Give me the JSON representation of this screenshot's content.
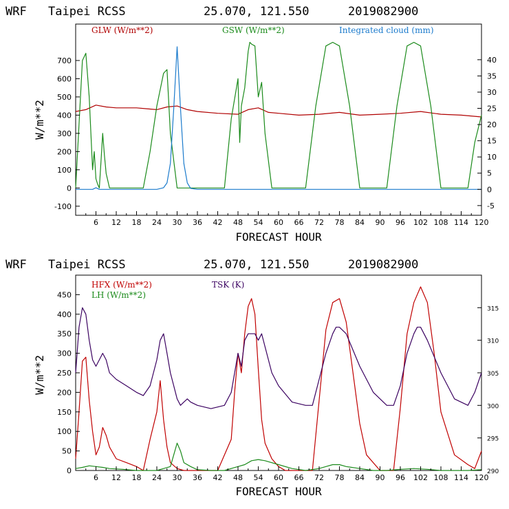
{
  "chart_data": [
    {
      "type": "line",
      "header": {
        "model": "WRF",
        "station": "Taipei RCSS",
        "coords": "25.070, 121.550",
        "init": "2019082900"
      },
      "xlabel": "FORECAST HOUR",
      "ylabel": "W/m**2",
      "xlim": [
        0,
        120
      ],
      "ylim": [
        -150,
        900
      ],
      "y2lim": [
        -8,
        51
      ],
      "xticks": [
        "6",
        "12",
        "18",
        "24",
        "30",
        "36",
        "42",
        "48",
        "54",
        "60",
        "66",
        "72",
        "78",
        "84",
        "90",
        "96",
        "102",
        "108",
        "114",
        "120"
      ],
      "yticks": [
        "-100",
        "0",
        "100",
        "200",
        "300",
        "400",
        "500",
        "600",
        "700"
      ],
      "y2ticks": [
        "-5",
        "0",
        "5",
        "10",
        "15",
        "20",
        "25",
        "30",
        "35",
        "40"
      ],
      "legend": [
        {
          "label": "GLW (W/m**2)",
          "color": "#b00000"
        },
        {
          "label": "GSW (W/m**2)",
          "color": "#1a8a1a"
        },
        {
          "label": "Integrated cloud (mm)",
          "color": "#1a7acc"
        }
      ],
      "series": [
        {
          "name": "GLW (W/m**2)",
          "color": "#b00000",
          "axis": "left",
          "x": [
            0,
            3,
            6,
            9,
            12,
            18,
            21,
            24,
            27,
            30,
            33,
            36,
            42,
            48,
            51,
            54,
            57,
            60,
            66,
            72,
            78,
            84,
            90,
            96,
            102,
            108,
            114,
            120
          ],
          "y": [
            420,
            430,
            455,
            445,
            440,
            440,
            435,
            430,
            445,
            450,
            430,
            420,
            410,
            405,
            430,
            440,
            415,
            410,
            400,
            405,
            415,
            400,
            405,
            410,
            420,
            405,
            400,
            390
          ]
        },
        {
          "name": "GSW (W/m**2)",
          "color": "#1a8a1a",
          "axis": "left",
          "x": [
            0,
            1,
            2,
            3,
            4,
            5,
            5.5,
            6,
            6.5,
            7,
            7.5,
            8,
            8.5,
            9,
            10,
            11,
            12,
            20,
            22,
            24,
            26,
            27,
            28,
            30,
            44,
            46,
            48,
            48.5,
            49,
            50,
            51,
            51.5,
            52,
            53,
            54,
            55,
            56,
            58,
            68,
            71,
            74,
            76,
            78,
            81,
            84,
            92,
            95,
            98,
            100,
            102,
            105,
            108,
            116,
            118,
            120
          ],
          "y": [
            0,
            350,
            700,
            740,
            500,
            100,
            200,
            50,
            20,
            0,
            150,
            300,
            180,
            80,
            0,
            0,
            0,
            0,
            200,
            450,
            630,
            650,
            300,
            0,
            0,
            380,
            600,
            250,
            450,
            550,
            750,
            800,
            790,
            780,
            500,
            580,
            300,
            0,
            0,
            450,
            780,
            800,
            780,
            450,
            0,
            0,
            450,
            780,
            800,
            780,
            450,
            0,
            0,
            250,
            400
          ]
        },
        {
          "name": "Integrated cloud (mm)",
          "color": "#1a7acc",
          "axis": "right",
          "x": [
            0,
            5,
            6,
            7,
            8,
            24,
            26,
            27,
            28,
            29,
            30,
            31,
            32,
            33,
            34,
            36,
            120
          ],
          "y": [
            0,
            0,
            0.5,
            0,
            0,
            0,
            0.5,
            2,
            8,
            25,
            44,
            25,
            8,
            2,
            0.3,
            0,
            0
          ]
        }
      ]
    },
    {
      "type": "line",
      "header": {
        "model": "WRF",
        "station": "Taipei RCSS",
        "coords": "25.070, 121.550",
        "init": "2019082900"
      },
      "xlabel": "FORECAST HOUR",
      "ylabel": "W/m**2",
      "xlim": [
        0,
        120
      ],
      "ylim": [
        0,
        500
      ],
      "y2lim": [
        290,
        320
      ],
      "xticks": [
        "6",
        "12",
        "18",
        "24",
        "30",
        "36",
        "42",
        "48",
        "54",
        "60",
        "66",
        "72",
        "78",
        "84",
        "90",
        "96",
        "102",
        "108",
        "114",
        "120"
      ],
      "yticks": [
        "0",
        "50",
        "100",
        "150",
        "200",
        "250",
        "300",
        "350",
        "400",
        "450"
      ],
      "y2ticks": [
        "290",
        "295",
        "300",
        "305",
        "310",
        "315"
      ],
      "legend": [
        {
          "label": "HFX (W/m**2)",
          "color": "#c00000"
        },
        {
          "label": "LH  (W/m**2)",
          "color": "#1a8a1a"
        },
        {
          "label": "TSK (K)",
          "color": "#3a0060"
        }
      ],
      "series": [
        {
          "name": "HFX (W/m**2)",
          "color": "#c00000",
          "axis": "left",
          "x": [
            0,
            1,
            2,
            3,
            4,
            5,
            6,
            7,
            8,
            9,
            10,
            12,
            15,
            18,
            20,
            22,
            24,
            25,
            26,
            27,
            28,
            30,
            32,
            34,
            36,
            42,
            46,
            47,
            48,
            49,
            50,
            51,
            52,
            53,
            54,
            55,
            56,
            58,
            60,
            62,
            66,
            70,
            72,
            74,
            76,
            78,
            80,
            82,
            84,
            86,
            90,
            94,
            96,
            98,
            100,
            102,
            104,
            106,
            108,
            112,
            116,
            118,
            120
          ],
          "y": [
            30,
            150,
            280,
            290,
            180,
            100,
            40,
            60,
            110,
            90,
            60,
            30,
            20,
            10,
            0,
            80,
            150,
            230,
            130,
            60,
            20,
            5,
            0,
            0,
            0,
            0,
            80,
            200,
            300,
            250,
            350,
            420,
            440,
            400,
            260,
            130,
            70,
            30,
            10,
            0,
            0,
            0,
            180,
            360,
            430,
            440,
            380,
            250,
            120,
            40,
            0,
            0,
            160,
            350,
            430,
            470,
            430,
            300,
            150,
            40,
            15,
            5,
            50
          ]
        },
        {
          "name": "LH  (W/m**2)",
          "color": "#1a8a1a",
          "axis": "left",
          "x": [
            0,
            2,
            4,
            6,
            8,
            10,
            14,
            18,
            24,
            26,
            28,
            29,
            30,
            31,
            32,
            34,
            36,
            40,
            44,
            48,
            50,
            52,
            54,
            56,
            60,
            64,
            68,
            72,
            74,
            76,
            78,
            80,
            84,
            88,
            92,
            96,
            100,
            104,
            108,
            112,
            116,
            120
          ],
          "y": [
            5,
            8,
            12,
            10,
            8,
            5,
            3,
            0,
            0,
            5,
            10,
            40,
            70,
            50,
            20,
            10,
            2,
            0,
            0,
            10,
            15,
            25,
            28,
            25,
            15,
            5,
            0,
            5,
            10,
            15,
            15,
            10,
            5,
            0,
            0,
            3,
            5,
            3,
            0,
            0,
            0,
            2
          ]
        },
        {
          "name": "TSK (K)",
          "color": "#3a0060",
          "axis": "right",
          "x": [
            0,
            1,
            2,
            3,
            4,
            5,
            6,
            7,
            8,
            9,
            10,
            12,
            15,
            18,
            20,
            22,
            24,
            25,
            26,
            27,
            28,
            29,
            30,
            31,
            32,
            33,
            34,
            36,
            40,
            44,
            46,
            47,
            48,
            49,
            50,
            51,
            52,
            53,
            54,
            55,
            56,
            58,
            60,
            64,
            68,
            70,
            72,
            74,
            76,
            77,
            78,
            80,
            84,
            88,
            92,
            94,
            96,
            98,
            100,
            101,
            102,
            104,
            108,
            112,
            116,
            118,
            120
          ],
          "y": [
            305,
            312,
            315,
            314,
            310,
            307,
            306,
            307,
            308,
            307,
            305,
            304,
            303,
            302,
            301.5,
            303,
            307,
            310,
            311,
            308,
            305,
            303,
            301,
            300,
            300.5,
            301,
            300.5,
            300,
            299.5,
            300,
            302,
            305,
            308,
            306,
            310,
            311,
            311,
            311,
            310,
            311,
            309,
            305,
            303,
            300.5,
            300,
            300,
            304,
            308,
            311,
            312,
            312,
            311,
            306,
            302,
            300,
            300,
            303,
            308,
            311,
            312,
            312,
            310,
            305,
            301,
            300,
            302,
            305
          ]
        }
      ]
    }
  ]
}
